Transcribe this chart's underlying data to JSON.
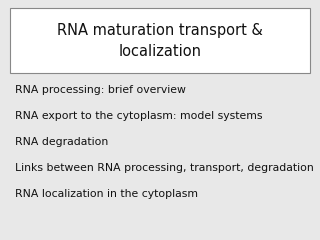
{
  "title_line1": "RNA maturation transport &",
  "title_line2": "localization",
  "bullet_items": [
    "RNA processing: brief overview",
    "RNA export to the cytoplasm: model systems",
    "RNA degradation",
    "Links between RNA processing, transport, degradation",
    "RNA localization in the cytoplasm"
  ],
  "background_color": "#e8e8e8",
  "title_box_bg": "#ffffff",
  "title_box_edge": "#888888",
  "text_color": "#111111",
  "title_fontsize": 10.5,
  "bullet_fontsize": 7.8
}
